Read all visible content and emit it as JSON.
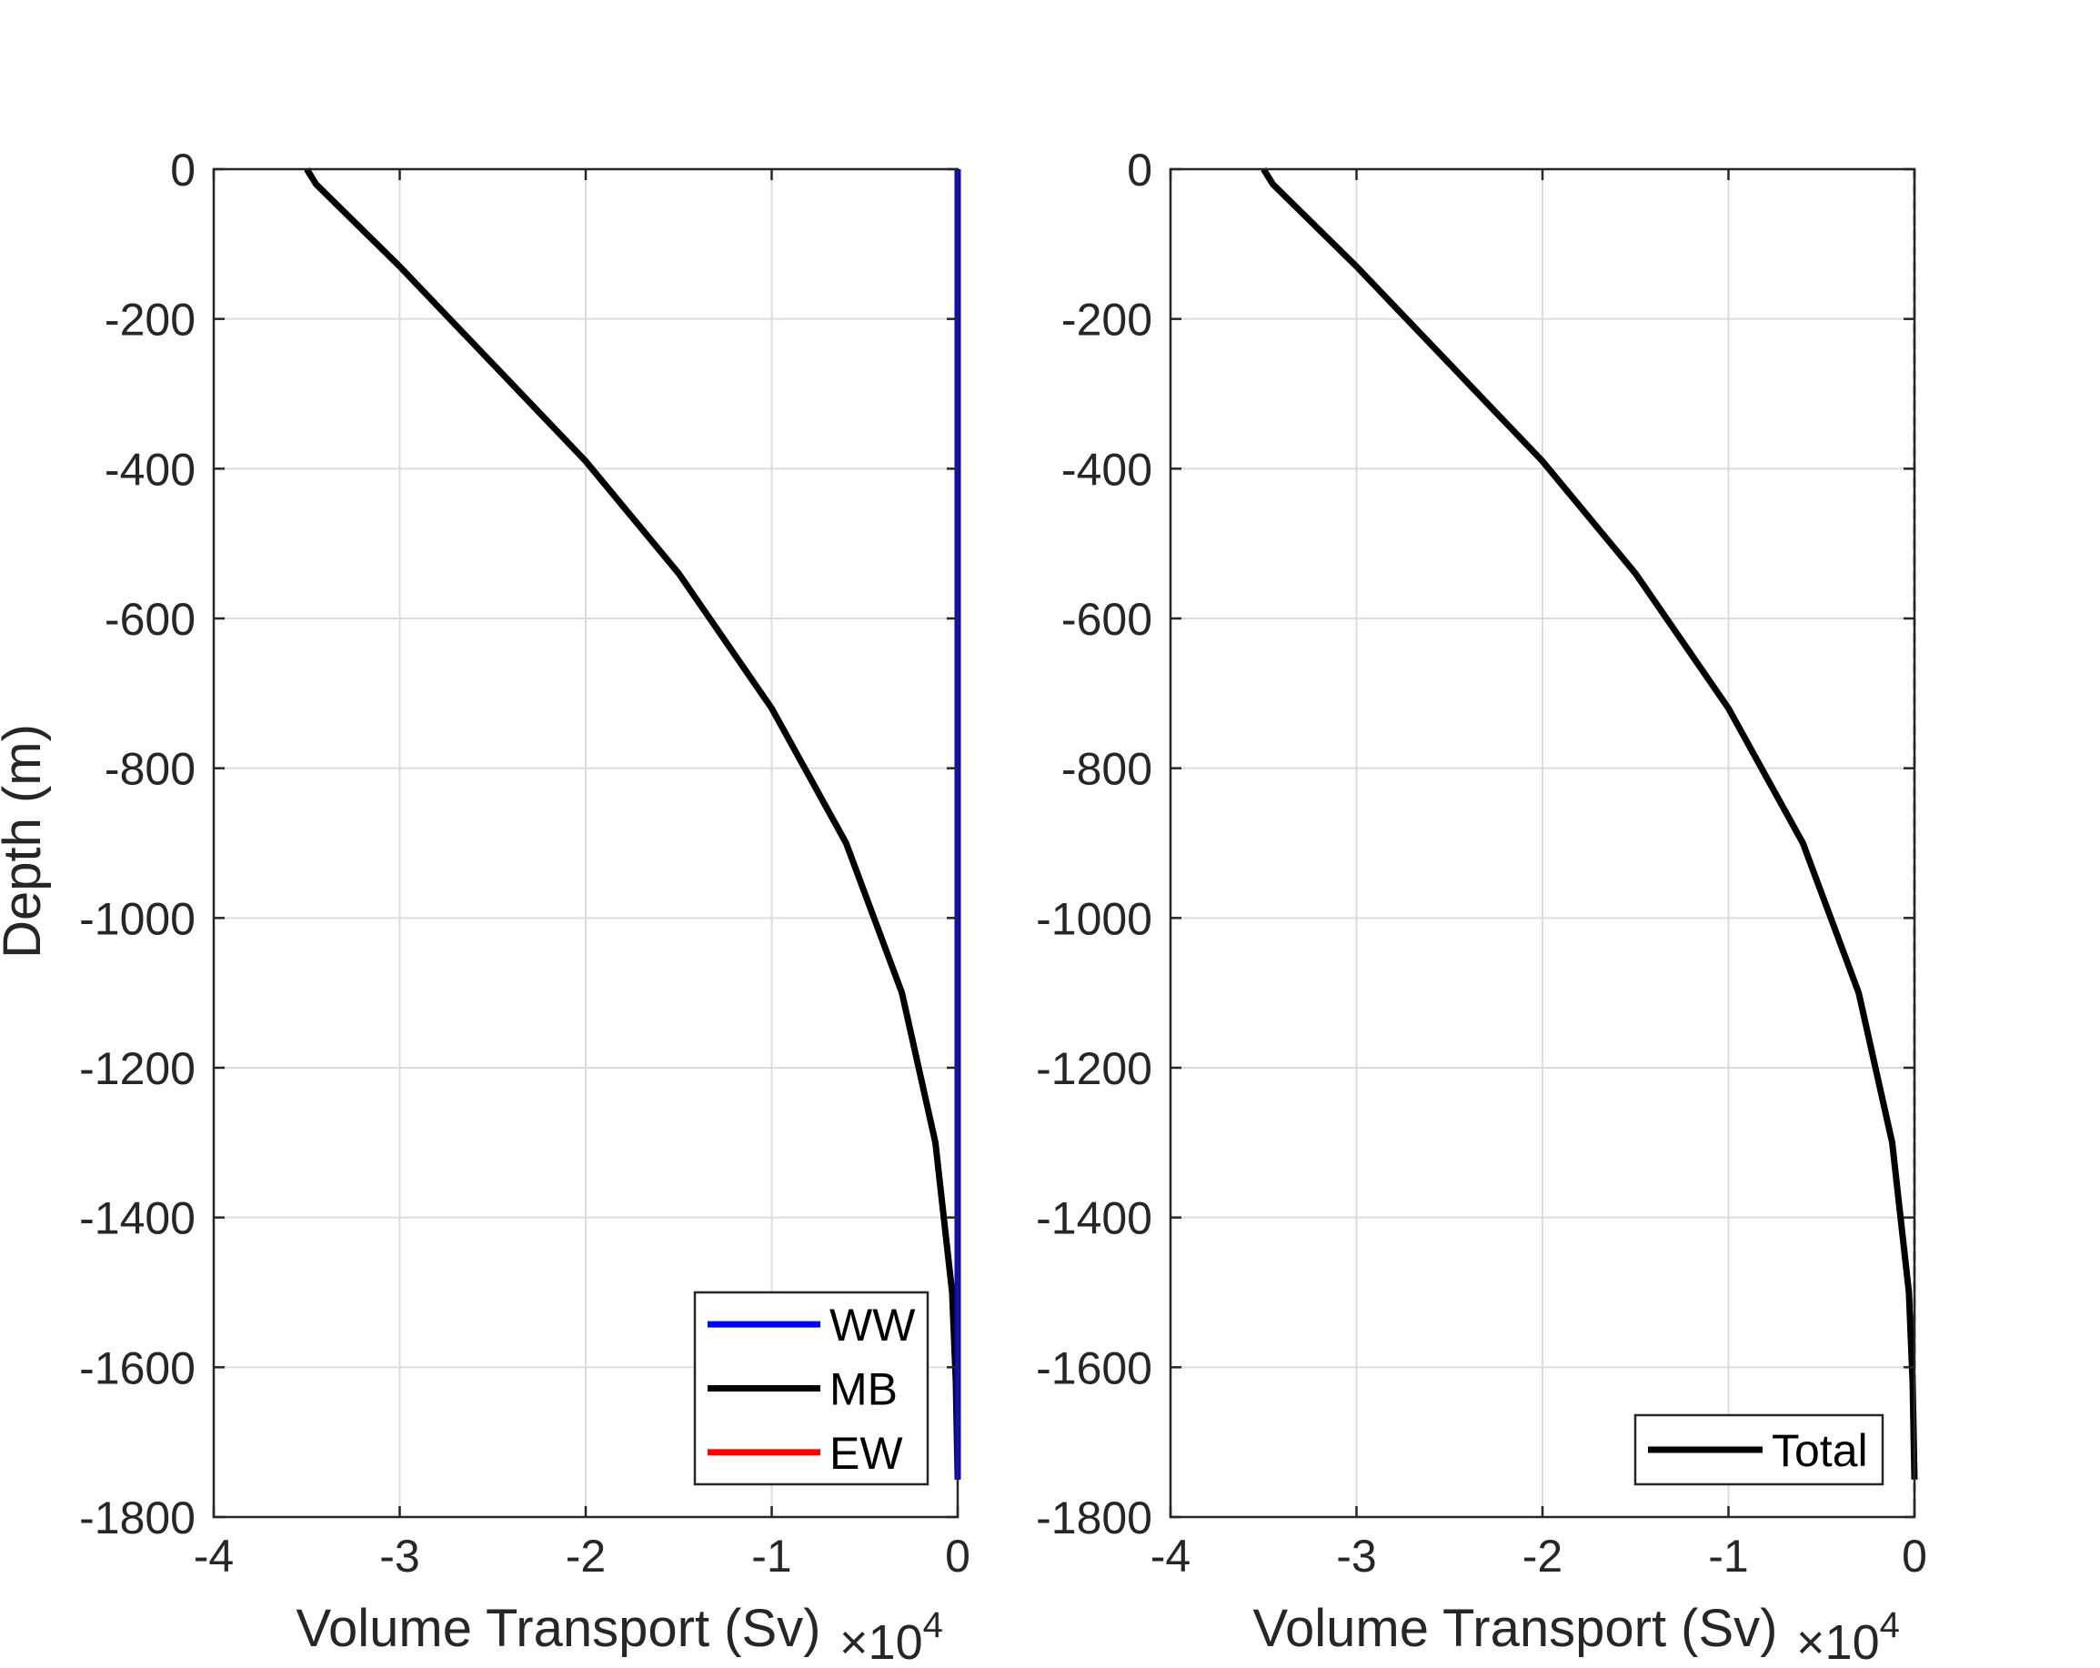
{
  "figure": {
    "ylabel": "Depth (m)"
  },
  "chart_data": [
    {
      "type": "line",
      "xlabel": "Volume Transport (Sv)",
      "ylabel": "Depth (m)",
      "x_exponent_base": "×10",
      "x_exponent": "4",
      "x_scale_factor": 10000,
      "xlim": [
        -4,
        0
      ],
      "ylim": [
        -1800,
        0
      ],
      "xticks": [
        -4,
        -3,
        -2,
        -1,
        0
      ],
      "yticks": [
        0,
        -200,
        -400,
        -600,
        -800,
        -1000,
        -1200,
        -1400,
        -1600,
        -1800
      ],
      "grid": true,
      "legend": {
        "position": "bottom-right"
      },
      "series": [
        {
          "name": "WW",
          "color": "#0000ff",
          "x": [
            0,
            0
          ],
          "y": [
            0,
            -1750
          ]
        },
        {
          "name": "MB",
          "color": "#000000",
          "x": [
            -3.5,
            -3.45,
            -3.0,
            -2.5,
            -2.0,
            -1.5,
            -1.0,
            -0.6,
            -0.3,
            -0.12,
            -0.03,
            -0.01,
            0
          ],
          "y": [
            0,
            -20,
            -130,
            -260,
            -390,
            -540,
            -720,
            -900,
            -1100,
            -1300,
            -1500,
            -1620,
            -1750
          ]
        },
        {
          "name": "EW",
          "color": "#ff0000",
          "x": [
            0,
            0
          ],
          "y": [
            0,
            -1750
          ]
        }
      ]
    },
    {
      "type": "line",
      "xlabel": "Volume Transport (Sv)",
      "x_exponent_base": "×10",
      "x_exponent": "4",
      "x_scale_factor": 10000,
      "xlim": [
        -4,
        0
      ],
      "ylim": [
        -1800,
        0
      ],
      "xticks": [
        -4,
        -3,
        -2,
        -1,
        0
      ],
      "yticks": [
        0,
        -200,
        -400,
        -600,
        -800,
        -1000,
        -1200,
        -1400,
        -1600,
        -1800
      ],
      "grid": true,
      "legend": {
        "position": "bottom-right"
      },
      "zero_reference_line": {
        "x": 0,
        "style": "dashed",
        "color": "#000000"
      },
      "series": [
        {
          "name": "Total",
          "color": "#000000",
          "x": [
            -3.5,
            -3.45,
            -3.0,
            -2.5,
            -2.0,
            -1.5,
            -1.0,
            -0.6,
            -0.3,
            -0.12,
            -0.03,
            -0.01,
            0
          ],
          "y": [
            0,
            -20,
            -130,
            -260,
            -390,
            -540,
            -720,
            -900,
            -1100,
            -1300,
            -1500,
            -1620,
            -1750
          ]
        }
      ]
    }
  ]
}
